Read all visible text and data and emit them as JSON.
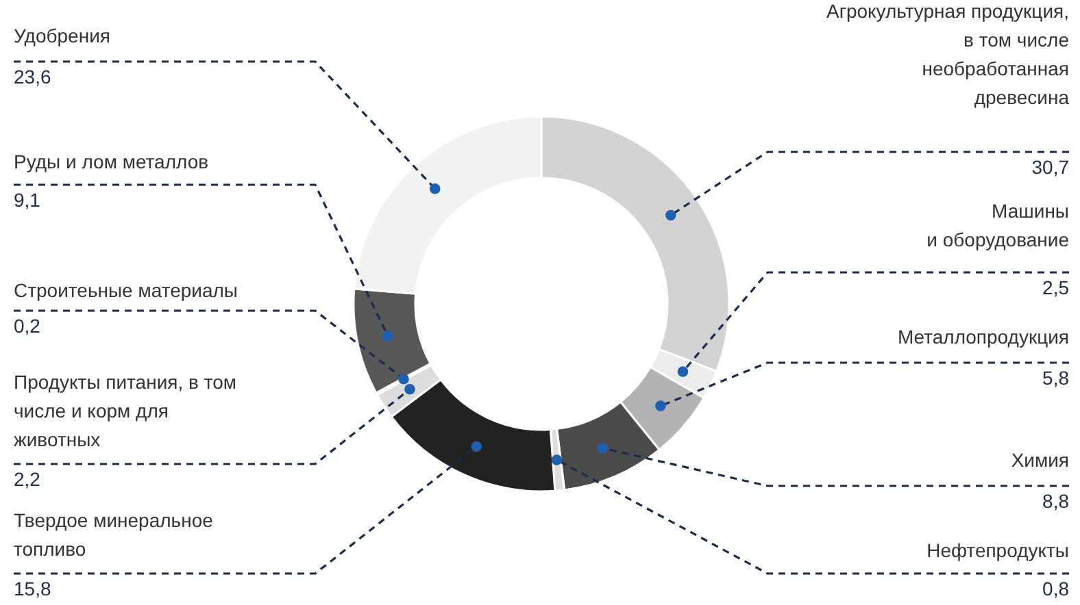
{
  "chart_data": {
    "type": "donut",
    "categories": [
      "Агрокультурная продукция,\nв том числе\nнеобработанная\nдревесина",
      "Машины\nи оборудование",
      "Металлопродукция",
      "Химия",
      "Нефтепродукты",
      "Твердое минеральное\nтопливо",
      "Продукты питания, в том\nчисле и корм для\nживотных",
      "Строитеьные материалы",
      "Руды и лом металлов",
      "Удобрения"
    ],
    "values": [
      30.7,
      2.5,
      5.8,
      8.8,
      0.8,
      15.8,
      2.2,
      0.2,
      9.1,
      23.6
    ],
    "value_labels": [
      "30,7",
      "2,5",
      "5,8",
      "8,8",
      "0,8",
      "15,8",
      "2,2",
      "0,2",
      "9,1",
      "23,6"
    ],
    "colors": [
      "#d3d3d3",
      "#ececec",
      "#b3b3b3",
      "#4a4a4a",
      "#dedede",
      "#222222",
      "#dcdcdc",
      "#cfcfcf",
      "#575757",
      "#f2f2f2"
    ]
  }
}
